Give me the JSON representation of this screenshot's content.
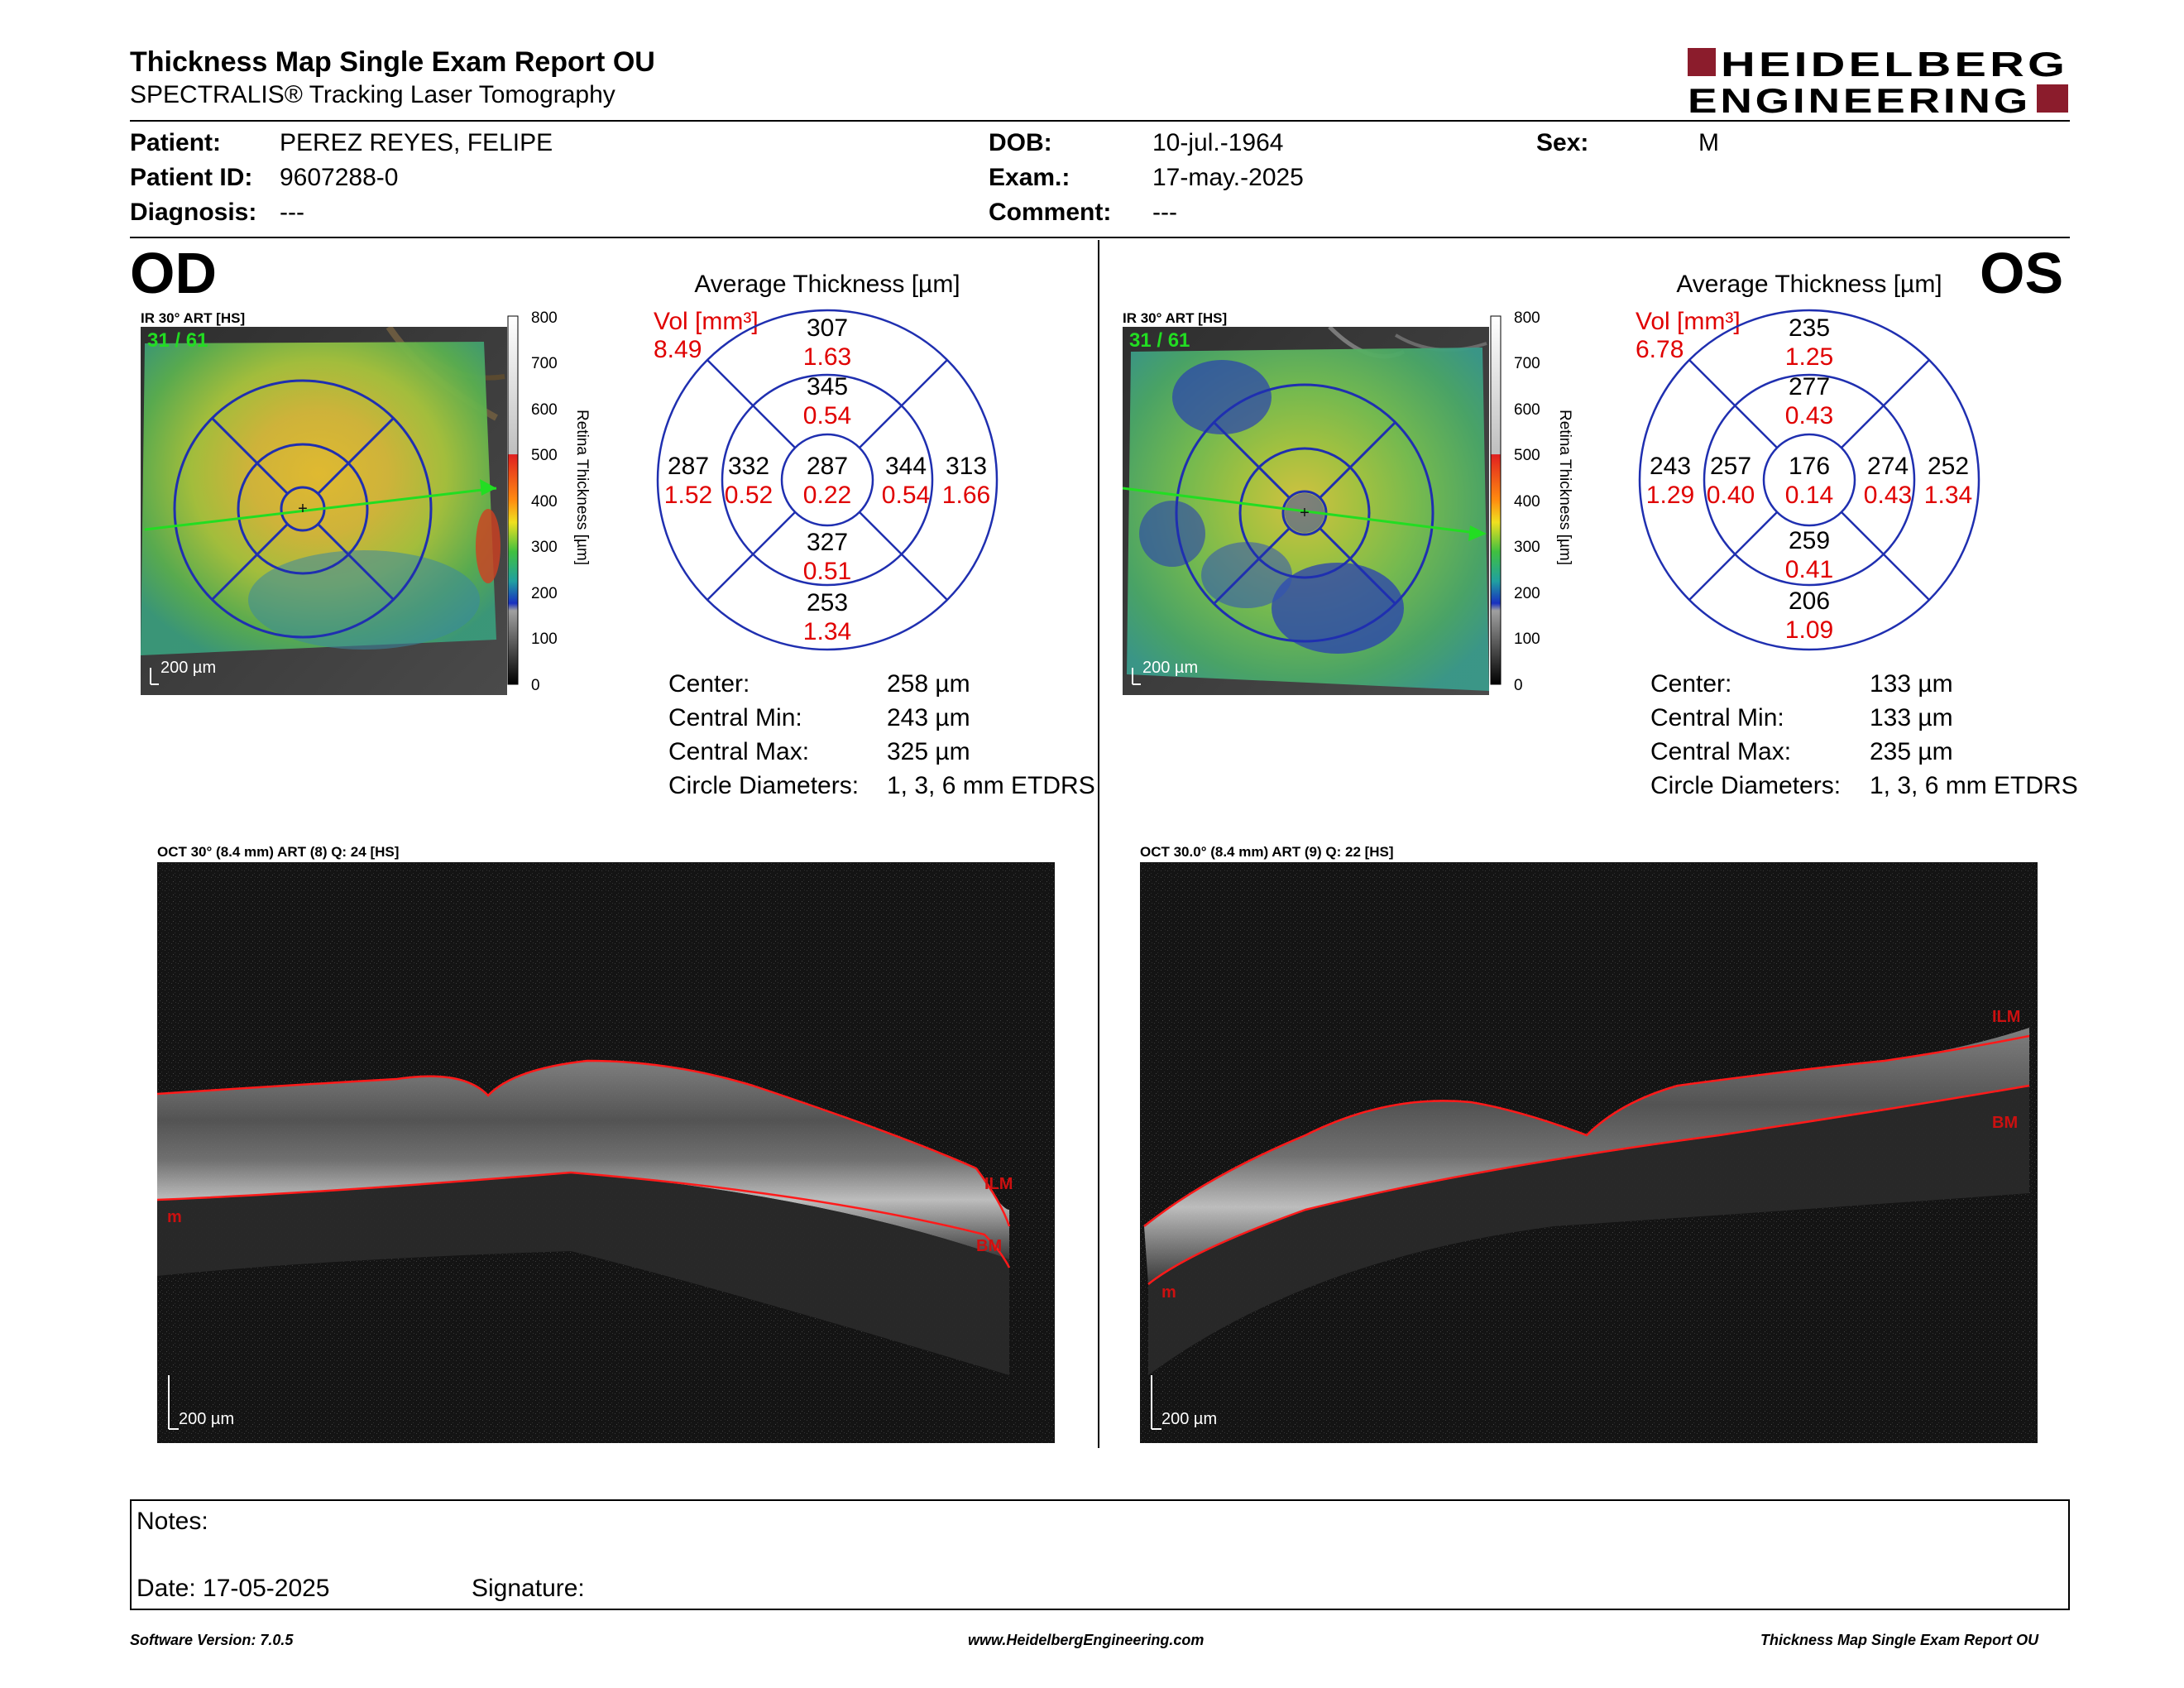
{
  "report": {
    "title": "Thickness Map Single Exam Report OU",
    "subtitle": "SPECTRALIS® Tracking Laser Tomography",
    "logo_line1": "HEIDELBERG",
    "logo_line2": "ENGINEERING"
  },
  "patient": {
    "patient_label": "Patient:",
    "patient_name": "PEREZ REYES, FELIPE",
    "id_label": "Patient ID:",
    "id": "9607288-0",
    "diagnosis_label": "Diagnosis:",
    "diagnosis": "---",
    "dob_label": "DOB:",
    "dob": "10-jul.-1964",
    "exam_label": "Exam.:",
    "exam": "17-may.-2025",
    "comment_label": "Comment:",
    "comment": "---",
    "sex_label": "Sex:",
    "sex": "M"
  },
  "od": {
    "eye": "OD",
    "ir_label": "IR 30° ART [HS]",
    "frame": "31 / 61",
    "scale": "200 µm",
    "colorbar_ticks": [
      "800",
      "700",
      "600",
      "500",
      "400",
      "300",
      "200",
      "100",
      "0"
    ],
    "colorbar_title": "Retina Thickness [µm]",
    "avg_title": "Average Thickness [µm]",
    "vol_label": "Vol [mm³]",
    "vol_total": "8.49",
    "grid": {
      "center": {
        "t": "287",
        "v": "0.22"
      },
      "inner_sup": {
        "t": "345",
        "v": "0.54"
      },
      "inner_inf": {
        "t": "327",
        "v": "0.51"
      },
      "inner_left": {
        "t": "332",
        "v": "0.52"
      },
      "inner_right": {
        "t": "344",
        "v": "0.54"
      },
      "outer_sup": {
        "t": "307",
        "v": "1.63"
      },
      "outer_inf": {
        "t": "253",
        "v": "1.34"
      },
      "outer_left": {
        "t": "287",
        "v": "1.52"
      },
      "outer_right": {
        "t": "313",
        "v": "1.66"
      }
    },
    "stats": [
      {
        "label": "Center:",
        "value": "258 µm"
      },
      {
        "label": "Central Min:",
        "value": "243 µm"
      },
      {
        "label": "Central Max:",
        "value": "325 µm"
      },
      {
        "label": "Circle Diameters:",
        "value": "1, 3, 6 mm ETDRS"
      }
    ],
    "oct_label": "OCT 30° (8.4 mm) ART (8) Q: 24 [HS]",
    "oct_scale": "200 µm",
    "layer_ilm": "ILM",
    "layer_bm": "BM",
    "layer_m": "m"
  },
  "os": {
    "eye": "OS",
    "ir_label": "IR 30° ART [HS]",
    "frame": "31 / 61",
    "scale": "200 µm",
    "colorbar_ticks": [
      "800",
      "700",
      "600",
      "500",
      "400",
      "300",
      "200",
      "100",
      "0"
    ],
    "colorbar_title": "Retina Thickness [µm]",
    "avg_title": "Average Thickness [µm]",
    "vol_label": "Vol [mm³]",
    "vol_total": "6.78",
    "grid": {
      "center": {
        "t": "176",
        "v": "0.14"
      },
      "inner_sup": {
        "t": "277",
        "v": "0.43"
      },
      "inner_inf": {
        "t": "259",
        "v": "0.41"
      },
      "inner_left": {
        "t": "257",
        "v": "0.40"
      },
      "inner_right": {
        "t": "274",
        "v": "0.43"
      },
      "outer_sup": {
        "t": "235",
        "v": "1.25"
      },
      "outer_inf": {
        "t": "206",
        "v": "1.09"
      },
      "outer_left": {
        "t": "243",
        "v": "1.29"
      },
      "outer_right": {
        "t": "252",
        "v": "1.34"
      }
    },
    "stats": [
      {
        "label": "Center:",
        "value": "133 µm"
      },
      {
        "label": "Central Min:",
        "value": "133 µm"
      },
      {
        "label": "Central Max:",
        "value": "235 µm"
      },
      {
        "label": "Circle Diameters:",
        "value": "1, 3, 6 mm ETDRS"
      }
    ],
    "oct_label": "OCT 30.0° (8.4 mm) ART (9) Q: 22 [HS]",
    "oct_scale": "200 µm",
    "layer_ilm": "ILM",
    "layer_bm": "BM",
    "layer_m": "m"
  },
  "notes": {
    "notes_label": "Notes:",
    "date_label": "Date: 17-05-2025",
    "signature_label": "Signature:"
  },
  "footer": {
    "software": "Software Version: 7.0.5",
    "website": "www.HeidelbergEngineering.com",
    "report": "Thickness Map Single Exam Report OU"
  },
  "colors": {
    "grid_blue": "#1f2fb0",
    "value_red": "#e00000",
    "brand_red": "#8b1c2c",
    "scan_green": "#22dd22",
    "seg_red": "#ff1a1a"
  }
}
